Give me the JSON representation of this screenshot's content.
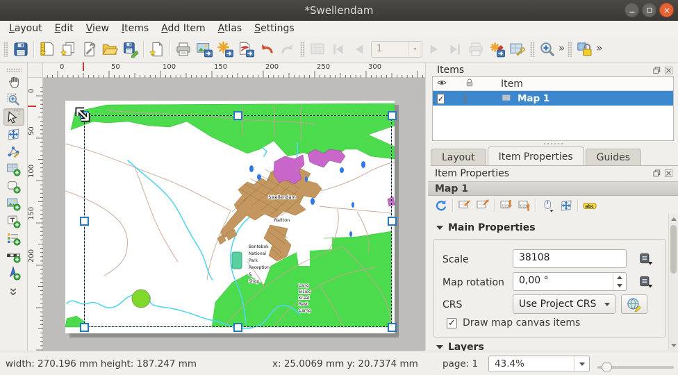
{
  "colors": {
    "titlebar_bg": "#403f3a",
    "close_button": "#e66234",
    "chrome_bg": "#f0efec",
    "chrome_border": "#cfccc6",
    "text": "#3c3b37",
    "canvas_bg": "#bebdbb",
    "page_shadow": "#8f8f8d",
    "selection_blue": "#3b87ce",
    "handle_border": "#2579be",
    "map_green": "#4cdb4c",
    "map_light_green": "#7fd928",
    "map_magenta": "#c966c9",
    "map_urban": "#c49760",
    "map_road": "#c9a28e",
    "map_river": "#52d5ef",
    "map_water": "#2b79e8",
    "map_teal": "#5bcfa0",
    "ruler_red": "#cc0000"
  },
  "window": {
    "title": "*Swellendam"
  },
  "menu_items": [
    "Layout",
    "Edit",
    "View",
    "Items",
    "Add Item",
    "Atlas",
    "Settings"
  ],
  "main_toolbar": {
    "atlas_page_value": "1",
    "overflow_glyph": "»",
    "buttons": [
      {
        "type": "grip"
      },
      {
        "name": "save-project",
        "icon": "save"
      },
      {
        "type": "sep"
      },
      {
        "name": "new-layout",
        "icon": "new-layout"
      },
      {
        "name": "duplicate-layout",
        "icon": "duplicate-layout"
      },
      {
        "name": "layout-manager",
        "icon": "layout-manager"
      },
      {
        "name": "open-template",
        "icon": "open"
      },
      {
        "name": "save-as-template",
        "icon": "save-as"
      },
      {
        "type": "sep"
      },
      {
        "name": "add-pages",
        "icon": "add-pages"
      },
      {
        "type": "sep"
      },
      {
        "name": "print-layout",
        "icon": "print"
      },
      {
        "name": "export-as-image",
        "icon": "export-image"
      },
      {
        "name": "export-as-svg",
        "icon": "export-svg"
      },
      {
        "name": "export-as-pdf",
        "icon": "export-pdf"
      },
      {
        "name": "undo",
        "icon": "undo"
      },
      {
        "name": "redo",
        "icon": "redo",
        "enabled": false
      },
      {
        "type": "grip"
      },
      {
        "name": "atlas-preview",
        "icon": "atlas-preview",
        "enabled": false
      },
      {
        "name": "atlas-first-feature",
        "icon": "nav-first",
        "enabled": false
      },
      {
        "name": "atlas-previous-feature",
        "icon": "nav-prev",
        "enabled": false
      },
      {
        "name": "atlas-page-combo",
        "type": "combo",
        "enabled": false
      },
      {
        "name": "atlas-next-feature",
        "icon": "nav-next",
        "enabled": false
      },
      {
        "name": "atlas-last-feature",
        "icon": "nav-last",
        "enabled": false
      },
      {
        "name": "print-atlas",
        "icon": "print-gray",
        "enabled": false
      },
      {
        "name": "export-atlas",
        "icon": "atlas-export"
      },
      {
        "name": "atlas-settings",
        "icon": "atlas-settings"
      },
      {
        "type": "grip"
      },
      {
        "name": "zoom-toolbar",
        "icon": "zoom-in"
      },
      {
        "name": "zoom-toolbar-overflow",
        "type": "overflow"
      },
      {
        "type": "grip"
      },
      {
        "name": "lock-items",
        "icon": "lock"
      },
      {
        "name": "actions-toolbar-overflow",
        "type": "overflow"
      }
    ]
  },
  "left_toolbar": {
    "buttons": [
      {
        "name": "pan-layout",
        "icon": "pan"
      },
      {
        "name": "zoom-region",
        "icon": "zoom-region"
      },
      {
        "name": "select-move-item",
        "icon": "select",
        "active": true
      },
      {
        "name": "move-item-content",
        "icon": "move-content"
      },
      {
        "name": "edit-nodes-item",
        "icon": "edit-nodes"
      },
      {
        "name": "add-map",
        "icon": "add-map"
      },
      {
        "name": "add-shape",
        "icon": "add-shape"
      },
      {
        "name": "add-picture",
        "icon": "add-picture"
      },
      {
        "name": "add-label",
        "icon": "add-label"
      },
      {
        "name": "add-legend",
        "icon": "add-legend"
      },
      {
        "name": "add-scalebar",
        "icon": "add-scalebar"
      },
      {
        "name": "add-north-arrow",
        "icon": "add-north-arrow"
      },
      {
        "name": "more-tools",
        "icon": "chevron-more"
      }
    ]
  },
  "rulers": {
    "horizontal_labels": [
      "0",
      "50",
      "100",
      "150",
      "200",
      "250",
      "300"
    ],
    "vertical_labels": [
      "0",
      "50",
      "100",
      "150",
      "200"
    ]
  },
  "map": {
    "labels": {
      "town": "Swellendam",
      "suburb": "Railton",
      "park_lines": [
        "Bontebok",
        "National",
        "Park",
        "Reception",
        "&",
        "Shop"
      ],
      "camp_lines": [
        "Lang",
        "Elsies",
        "Kraal",
        "Rest",
        "Camp"
      ]
    }
  },
  "items_panel": {
    "title": "Items",
    "item_column": "Item",
    "row": {
      "label": "Map 1",
      "visible": true,
      "locked": false,
      "selected": true
    }
  },
  "tabs": {
    "items": [
      "Layout",
      "Item Properties",
      "Guides"
    ],
    "active": "Item Properties"
  },
  "item_properties": {
    "panel_title": "Item Properties",
    "header": "Map 1",
    "tools": [
      {
        "name": "refresh-map-preview",
        "icon": "refresh"
      },
      {
        "type": "sep"
      },
      {
        "name": "set-map-extent-from-canvas",
        "icon": "extent-in"
      },
      {
        "name": "view-extent-in-canvas",
        "icon": "extent-out"
      },
      {
        "type": "sep"
      },
      {
        "name": "set-map-scale-to-canvas",
        "icon": "scale-down"
      },
      {
        "name": "set-canvas-to-map-scale",
        "icon": "scale-up"
      },
      {
        "type": "sep"
      },
      {
        "name": "interactively-edit-extent",
        "icon": "mouse-edit"
      },
      {
        "name": "move-map-content",
        "icon": "move-content"
      },
      {
        "type": "sep"
      },
      {
        "name": "label-settings",
        "icon": "labels-abc"
      }
    ],
    "main_section": "Main Properties",
    "scale_label": "Scale",
    "scale_value": "38108",
    "rotation_label": "Map rotation",
    "rotation_value": "0,00 °",
    "crs_label": "CRS",
    "crs_value": "Use Project CRS",
    "draw_items_label": "Draw map canvas items",
    "draw_items_checked": true,
    "layers_section": "Layers"
  },
  "status": {
    "size": "width: 270.196 mm height: 187.247 mm",
    "coords": "x: 25.0069 mm  y: 20.7374 mm",
    "page": "page: 1",
    "zoom": "43.4%"
  }
}
